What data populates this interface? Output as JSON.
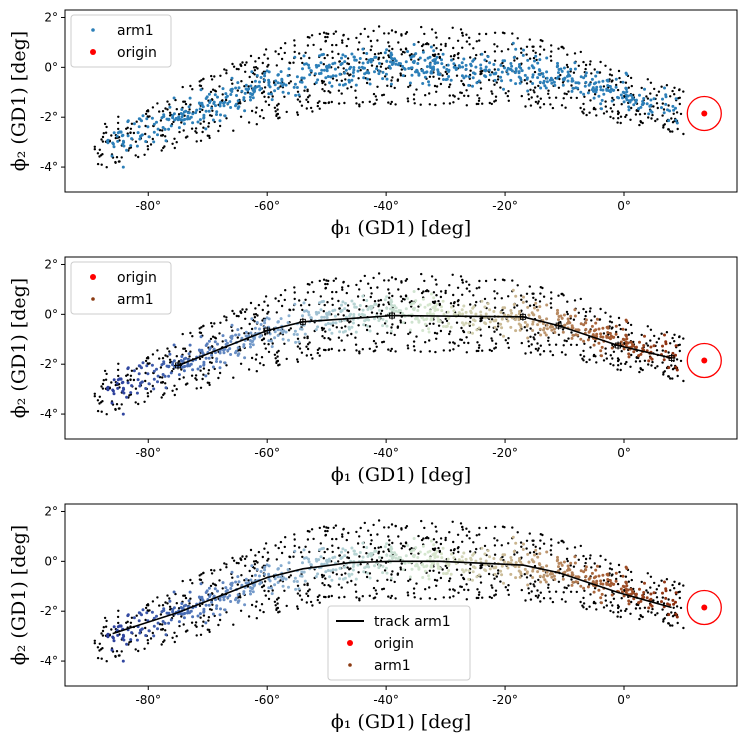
{
  "chart_data": [
    {
      "type": "scatter",
      "panel": "top",
      "xlabel": "ϕ₁ (GD1) [deg]",
      "ylabel": "ϕ₂ (GD1) [deg]",
      "xlim": [
        -94,
        19
      ],
      "ylim": [
        -5,
        2.3
      ],
      "xticks": [
        -80,
        -60,
        -40,
        -20,
        0
      ],
      "xtick_labels": [
        "-80°",
        "-60°",
        "-40°",
        "-20°",
        "0°"
      ],
      "yticks": [
        2,
        0,
        -2,
        -4
      ],
      "ytick_labels": [
        "2°",
        "0°",
        "-2°",
        "-4°"
      ],
      "arm_color": "single",
      "show_track": false,
      "show_track_points": false,
      "legend_position": "top-left",
      "legend": [
        {
          "label": "arm1",
          "marker": "arm"
        },
        {
          "label": "origin",
          "marker": "origin"
        }
      ]
    },
    {
      "type": "scatter",
      "panel": "middle",
      "xlabel": "ϕ₁ (GD1) [deg]",
      "ylabel": "ϕ₂ (GD1) [deg]",
      "xlim": [
        -94,
        19
      ],
      "ylim": [
        -5,
        2.3
      ],
      "xticks": [
        -80,
        -60,
        -40,
        -20,
        0
      ],
      "xtick_labels": [
        "-80°",
        "-60°",
        "-40°",
        "-20°",
        "0°"
      ],
      "yticks": [
        2,
        0,
        -2,
        -4
      ],
      "ytick_labels": [
        "2°",
        "0°",
        "-2°",
        "-4°"
      ],
      "arm_color": "gradient",
      "show_track": true,
      "show_track_points": true,
      "legend_position": "top-left",
      "legend": [
        {
          "label": "origin",
          "marker": "origin"
        },
        {
          "label": "arm1",
          "marker": "arm"
        }
      ]
    },
    {
      "type": "scatter",
      "panel": "bottom",
      "xlabel": "ϕ₁ (GD1) [deg]",
      "ylabel": "ϕ₂ (GD1) [deg]",
      "xlim": [
        -94,
        19
      ],
      "ylim": [
        -5,
        2.3
      ],
      "xticks": [
        -80,
        -60,
        -40,
        -20,
        0
      ],
      "xtick_labels": [
        "-80°",
        "-60°",
        "-40°",
        "-20°",
        "0°"
      ],
      "yticks": [
        2,
        0,
        -2,
        -4
      ],
      "ytick_labels": [
        "2°",
        "0°",
        "-2°",
        "-4°"
      ],
      "arm_color": "gradient",
      "show_track": true,
      "show_track_points": false,
      "legend_position": "lower-center",
      "legend": [
        {
          "label": "track arm1",
          "marker": "line"
        },
        {
          "label": "origin",
          "marker": "origin"
        },
        {
          "label": "arm1",
          "marker": "arm"
        }
      ]
    }
  ],
  "origin": {
    "phi1": 13.5,
    "phi2": -1.85
  },
  "track_points": [
    {
      "phi1": -75,
      "phi2": -2.05
    },
    {
      "phi1": -60,
      "phi2": -0.65
    },
    {
      "phi1": -54,
      "phi2": -0.3
    },
    {
      "phi1": -39,
      "phi2": -0.05
    },
    {
      "phi1": -17,
      "phi2": -0.1
    },
    {
      "phi1": -11,
      "phi2": -0.45
    },
    {
      "phi1": -1,
      "phi2": -1.25
    },
    {
      "phi1": 8,
      "phi2": -1.75
    }
  ],
  "track_line_full": [
    {
      "phi1": -86,
      "phi2": -2.9
    },
    {
      "phi1": -75,
      "phi2": -2.05
    },
    {
      "phi1": -60,
      "phi2": -0.65
    },
    {
      "phi1": -54,
      "phi2": -0.3
    },
    {
      "phi1": -46,
      "phi2": -0.05
    },
    {
      "phi1": -39,
      "phi2": 0.0
    },
    {
      "phi1": -31,
      "phi2": 0.0
    },
    {
      "phi1": -17,
      "phi2": -0.15
    },
    {
      "phi1": -11,
      "phi2": -0.45
    },
    {
      "phi1": -1,
      "phi2": -1.25
    },
    {
      "phi1": 8,
      "phi2": -1.85
    }
  ],
  "stream_shape": {
    "center_curve": [
      {
        "phi1": -88,
        "phi2": -3.2
      },
      {
        "phi1": -80,
        "phi2": -2.5
      },
      {
        "phi1": -70,
        "phi2": -1.6
      },
      {
        "phi1": -60,
        "phi2": -0.7
      },
      {
        "phi1": -50,
        "phi2": -0.1
      },
      {
        "phi1": -40,
        "phi2": 0.1
      },
      {
        "phi1": -30,
        "phi2": 0.05
      },
      {
        "phi1": -20,
        "phi2": -0.05
      },
      {
        "phi1": -10,
        "phi2": -0.4
      },
      {
        "phi1": 0,
        "phi2": -1.2
      },
      {
        "phi1": 10,
        "phi2": -1.8
      }
    ],
    "phi1_range": [
      -89,
      10
    ],
    "arm_spread_deg": 0.35,
    "background_spread_deg": 1.6,
    "arm_point_count": 700,
    "background_point_count": 900
  },
  "colors": {
    "arm_single": "#2c7fb8",
    "origin": "#ff0000",
    "origin_circle": "#ff0000",
    "background_points": "#000000",
    "track_line": "#000000",
    "gradient_stops": [
      "#2a3b9a",
      "#4a6fb5",
      "#7fa5cf",
      "#b6d4d4",
      "#d8e8cf",
      "#c9b48e",
      "#a8643a",
      "#8b2a0a"
    ],
    "legend_arm_gradient": "#8b3a12"
  }
}
